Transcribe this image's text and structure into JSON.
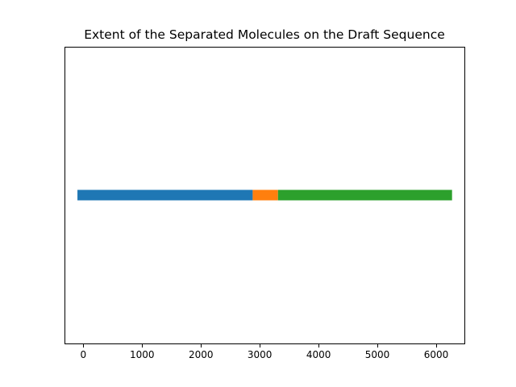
{
  "chart_data": {
    "type": "bar",
    "orientation": "horizontal",
    "title": "Extent of the Separated Molecules on the Draft Sequence",
    "xlabel": "",
    "ylabel": "",
    "xlim": [
      -320,
      6480
    ],
    "xticks": [
      0,
      1000,
      2000,
      3000,
      4000,
      5000,
      6000
    ],
    "xtick_labels": [
      "0",
      "1000",
      "2000",
      "3000",
      "4000",
      "5000",
      "6000"
    ],
    "y_ticks_visible": false,
    "grid": false,
    "segments": [
      {
        "start": -100,
        "end": 2880,
        "color": "#1f77b4"
      },
      {
        "start": 2880,
        "end": 3310,
        "color": "#ff7f0e"
      },
      {
        "start": 3310,
        "end": 6270,
        "color": "#2ca02c"
      }
    ]
  }
}
